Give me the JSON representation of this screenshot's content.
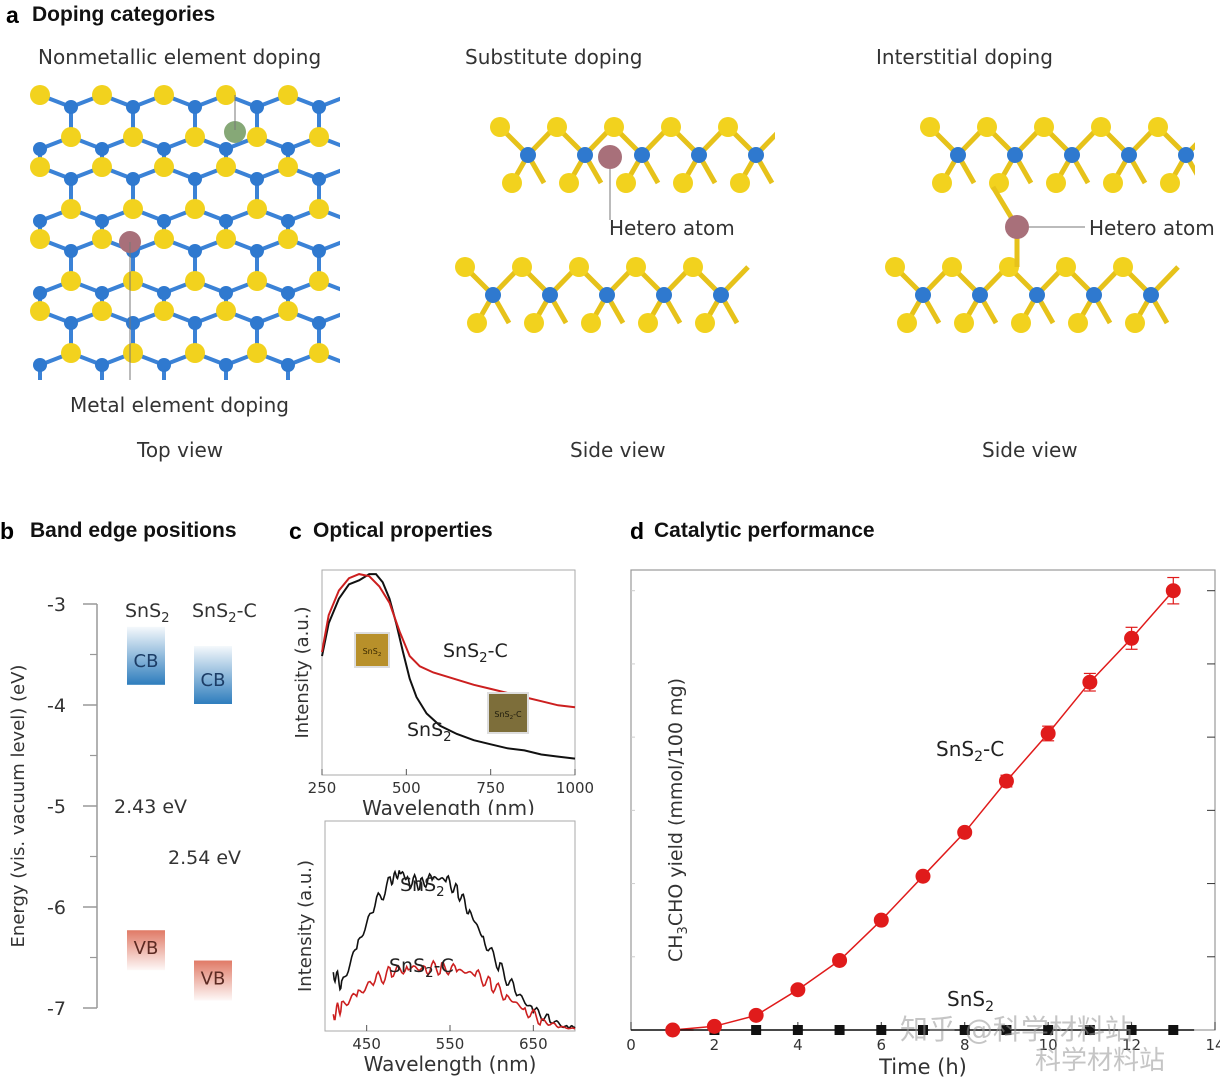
{
  "panel_a": {
    "letter": "a",
    "title": "Doping categories",
    "top": {
      "title": "Nonmetallic element doping",
      "metal_label": "Metal element doping",
      "view": "Top view"
    },
    "substitute": {
      "title": "Substitute doping",
      "hetero": "Hetero atom",
      "view": "Side view"
    },
    "interstitial": {
      "title": "Interstitial doping",
      "hetero": "Hetero atom",
      "view": "Side view"
    },
    "colors": {
      "sulfur": "#f2d21e",
      "tin": "#2f79cf",
      "dopant_metal": "#a8707a",
      "dopant_nonmetal": "#86a877"
    }
  },
  "chart_data": [
    {
      "id": "b",
      "type": "band-diagram",
      "letter": "b",
      "title": "Band edge positions",
      "ylabel": "Energy (vis. vacuum level) (eV)",
      "ylim": [
        -7,
        -3
      ],
      "yticks": [
        "-3",
        "-4",
        "-5",
        "-6",
        "-7"
      ],
      "materials": [
        {
          "name": "SnS",
          "sub": "2",
          "suffix": "",
          "cb": -3.8,
          "vb": -6.23,
          "cb_label": "CB",
          "vb_label": "VB",
          "gap_label": "2.43 eV"
        },
        {
          "name": "SnS",
          "sub": "2",
          "suffix": "-C",
          "cb": -3.99,
          "vb": -6.53,
          "cb_label": "CB",
          "vb_label": "VB",
          "gap_label": "2.54 eV"
        }
      ],
      "colors": {
        "cb": "#2e7dbd",
        "vb": "#e07a66"
      }
    },
    {
      "id": "c1",
      "type": "line",
      "letter": "c",
      "title": "Optical properties",
      "xlabel": "Wavelength (nm)",
      "ylabel": "Intensity (a.u.)",
      "xlim": [
        250,
        1000
      ],
      "ylim": [
        0,
        1
      ],
      "xticks": [
        "250",
        "500",
        "750",
        "1000"
      ],
      "series": [
        {
          "name": "SnS2",
          "label": "SnS",
          "sub": "2",
          "suffix": "",
          "color": "#111111",
          "x": [
            250,
            270,
            300,
            330,
            360,
            390,
            410,
            430,
            450,
            470,
            490,
            510,
            530,
            560,
            600,
            650,
            700,
            750,
            800,
            850,
            900,
            950,
            1000
          ],
          "y": [
            0.58,
            0.74,
            0.86,
            0.93,
            0.95,
            0.98,
            0.98,
            0.94,
            0.86,
            0.74,
            0.6,
            0.47,
            0.38,
            0.3,
            0.24,
            0.2,
            0.17,
            0.15,
            0.13,
            0.12,
            0.1,
            0.09,
            0.08
          ]
        },
        {
          "name": "SnS2-C",
          "label": "SnS",
          "sub": "2",
          "suffix": "-C",
          "color": "#cc1f1f",
          "x": [
            250,
            270,
            300,
            330,
            360,
            390,
            420,
            450,
            480,
            510,
            540,
            580,
            620,
            660,
            700,
            750,
            800,
            850,
            900,
            950,
            1000
          ],
          "y": [
            0.6,
            0.78,
            0.9,
            0.96,
            0.98,
            0.97,
            0.92,
            0.84,
            0.7,
            0.58,
            0.53,
            0.5,
            0.48,
            0.46,
            0.44,
            0.42,
            0.4,
            0.38,
            0.36,
            0.34,
            0.33
          ]
        }
      ],
      "insets": [
        {
          "label": "SnS",
          "sub": "2",
          "suffix": ""
        },
        {
          "label": "SnS",
          "sub": "2",
          "suffix": "-C"
        }
      ]
    },
    {
      "id": "c2",
      "type": "line",
      "xlabel": "Wavelength (nm)",
      "ylabel": "Intensity (a.u.)",
      "xlim": [
        400,
        700
      ],
      "ylim": [
        0,
        1
      ],
      "xticks": [
        "450",
        "550",
        "650"
      ],
      "series": [
        {
          "name": "SnS2",
          "label": "SnS",
          "sub": "2",
          "suffix": "",
          "color": "#111111",
          "x": [
            410,
            420,
            440,
            460,
            480,
            490,
            500,
            515,
            530,
            545,
            560,
            575,
            590,
            610,
            630,
            650,
            670,
            690,
            700
          ],
          "y": [
            0.28,
            0.22,
            0.42,
            0.6,
            0.72,
            0.76,
            0.72,
            0.7,
            0.73,
            0.72,
            0.66,
            0.56,
            0.44,
            0.3,
            0.18,
            0.1,
            0.05,
            0.02,
            0.02
          ]
        },
        {
          "name": "SnS2-C",
          "label": "SnS",
          "sub": "2",
          "suffix": "-C",
          "color": "#cc1f1f",
          "x": [
            410,
            420,
            440,
            460,
            480,
            500,
            520,
            540,
            560,
            580,
            600,
            620,
            640,
            660,
            680,
            700
          ],
          "y": [
            0.08,
            0.12,
            0.18,
            0.24,
            0.28,
            0.3,
            0.3,
            0.3,
            0.29,
            0.27,
            0.22,
            0.16,
            0.1,
            0.05,
            0.02,
            0.01
          ]
        }
      ]
    },
    {
      "id": "d",
      "type": "scatter",
      "letter": "d",
      "title": "Catalytic performance",
      "xlabel": "Time (h)",
      "ylabel": "CH3CHO yield (mmol/100 mg)",
      "ylabel_parts": {
        "pre": "CH",
        "s1": "3",
        "mid": "CHO yield (mmol/100 mg)"
      },
      "xlim": [
        0,
        14
      ],
      "ylim": [
        0,
        6
      ],
      "xticks": [
        "0",
        "2",
        "4",
        "6",
        "8",
        "10",
        "12",
        "14"
      ],
      "series": [
        {
          "name": "SnS2-C",
          "label": "SnS",
          "sub": "2",
          "suffix": "-C",
          "color": "#e01b1b",
          "x": [
            1,
            2,
            3,
            4,
            5,
            6,
            7,
            8,
            9,
            10,
            11,
            12,
            13
          ],
          "y": [
            0.0,
            0.05,
            0.2,
            0.55,
            0.95,
            1.5,
            2.1,
            2.7,
            3.4,
            4.05,
            4.75,
            5.35,
            6.0
          ],
          "err": [
            0,
            0,
            0,
            0,
            0,
            0,
            0,
            0,
            0.08,
            0.1,
            0.12,
            0.15,
            0.18
          ]
        },
        {
          "name": "SnS2",
          "label": "SnS",
          "sub": "2",
          "suffix": "",
          "color": "#111111",
          "x": [
            1,
            2,
            3,
            4,
            5,
            6,
            7,
            8,
            9,
            10,
            11,
            12,
            13
          ],
          "y": [
            0,
            0,
            0,
            0,
            0,
            0,
            0,
            0,
            0,
            0,
            0,
            0,
            0
          ]
        }
      ]
    }
  ],
  "watermark": {
    "line1": "知乎 @科学材料站",
    "line2": "科学材料站"
  }
}
